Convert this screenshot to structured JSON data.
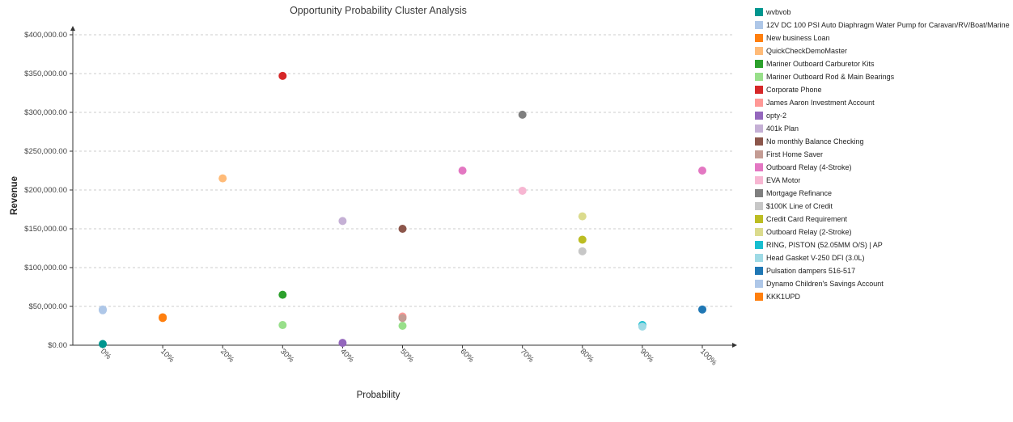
{
  "chart_data": {
    "type": "scatter",
    "title": "Opportunity Probability Cluster Analysis",
    "xlabel": "Probability",
    "ylabel": "Revenue",
    "xlim": [
      0,
      100
    ],
    "ylim": [
      0,
      400000
    ],
    "grid": "horizontal-dashed",
    "legend_position": "right",
    "x_ticks": [
      {
        "value": 0,
        "label": "0%"
      },
      {
        "value": 10,
        "label": "10%"
      },
      {
        "value": 20,
        "label": "20%"
      },
      {
        "value": 30,
        "label": "30%"
      },
      {
        "value": 40,
        "label": "40%"
      },
      {
        "value": 50,
        "label": "50%"
      },
      {
        "value": 60,
        "label": "60%"
      },
      {
        "value": 70,
        "label": "70%"
      },
      {
        "value": 80,
        "label": "80%"
      },
      {
        "value": 90,
        "label": "90%"
      },
      {
        "value": 100,
        "label": "100%"
      }
    ],
    "y_ticks": [
      {
        "value": 0,
        "label": "$0.00"
      },
      {
        "value": 50000,
        "label": "$50,000.00"
      },
      {
        "value": 100000,
        "label": "$100,000.00"
      },
      {
        "value": 150000,
        "label": "$150,000.00"
      },
      {
        "value": 200000,
        "label": "$200,000.00"
      },
      {
        "value": 250000,
        "label": "$250,000.00"
      },
      {
        "value": 300000,
        "label": "$300,000.00"
      },
      {
        "value": 350000,
        "label": "$350,000.00"
      },
      {
        "value": 400000,
        "label": "$400,000.00"
      }
    ],
    "series": [
      {
        "name": "wvbvob",
        "color": "#00968f",
        "points": [
          [
            0,
            1500
          ]
        ]
      },
      {
        "name": "12V DC 100 PSI Auto Diaphragm Water Pump for Caravan/RV/Boat/Marine",
        "color": "#aec7e8",
        "points": [
          [
            0,
            46000
          ]
        ]
      },
      {
        "name": "New business Loan",
        "color": "#ff7f0e",
        "points": [
          [
            10,
            36000
          ]
        ]
      },
      {
        "name": "QuickCheckDemoMaster",
        "color": "#ffbb78",
        "points": [
          [
            20,
            215000
          ]
        ]
      },
      {
        "name": "Mariner Outboard Carburetor Kits",
        "color": "#2ca02c",
        "points": [
          [
            30,
            65000
          ]
        ]
      },
      {
        "name": "Mariner Outboard Rod & Main Bearings",
        "color": "#98df8a",
        "points": [
          [
            30,
            26000
          ],
          [
            50,
            25000
          ]
        ]
      },
      {
        "name": "Corporate Phone",
        "color": "#d62728",
        "points": [
          [
            30,
            347000
          ]
        ]
      },
      {
        "name": "James Aaron Investment Account",
        "color": "#ff9896",
        "points": [
          [
            50,
            37000
          ]
        ]
      },
      {
        "name": "opty-2",
        "color": "#9467bd",
        "points": [
          [
            40,
            3000
          ]
        ]
      },
      {
        "name": "401k Plan",
        "color": "#c5b0d5",
        "points": [
          [
            40,
            160000
          ]
        ]
      },
      {
        "name": "No monthly Balance Checking",
        "color": "#8c564b",
        "points": [
          [
            50,
            150000
          ]
        ]
      },
      {
        "name": "First Home Saver",
        "color": "#c49c94",
        "points": [
          [
            50,
            35000
          ]
        ]
      },
      {
        "name": "Outboard Relay (4-Stroke)",
        "color": "#e377c2",
        "points": [
          [
            60,
            225000
          ],
          [
            100,
            225000
          ]
        ]
      },
      {
        "name": "EVA Motor",
        "color": "#f7b6d2",
        "points": [
          [
            70,
            199000
          ]
        ]
      },
      {
        "name": "Mortgage Refinance",
        "color": "#7f7f7f",
        "points": [
          [
            70,
            297000
          ]
        ]
      },
      {
        "name": "$100K Line of Credit",
        "color": "#c7c7c7",
        "points": [
          [
            80,
            121000
          ]
        ]
      },
      {
        "name": "Credit Card Requirement",
        "color": "#bcbd22",
        "points": [
          [
            80,
            136000
          ]
        ]
      },
      {
        "name": "Outboard Relay (2-Stroke)",
        "color": "#dbdb8d",
        "points": [
          [
            80,
            166000
          ]
        ]
      },
      {
        "name": "RING, PISTON (52.05MM O/S) | AP",
        "color": "#17becf",
        "points": [
          [
            90,
            26000
          ]
        ]
      },
      {
        "name": "Head Gasket V-250 DFI (3.0L)",
        "color": "#9edae5",
        "points": [
          [
            90,
            24000
          ]
        ]
      },
      {
        "name": "Pulsation dampers 516-517",
        "color": "#1f77b4",
        "points": [
          [
            100,
            46000
          ]
        ]
      },
      {
        "name": "Dynamo Children's Savings Account",
        "color": "#aec7e8",
        "points": [
          [
            0,
            45000
          ]
        ]
      },
      {
        "name": "KKK1UPD",
        "color": "#ff7f0e",
        "points": [
          [
            10,
            35000
          ]
        ]
      }
    ]
  },
  "colors": {
    "axis": "#333333",
    "grid": "#cccccc",
    "tick_label": "#444444",
    "title_text": "#3a3a3a"
  }
}
